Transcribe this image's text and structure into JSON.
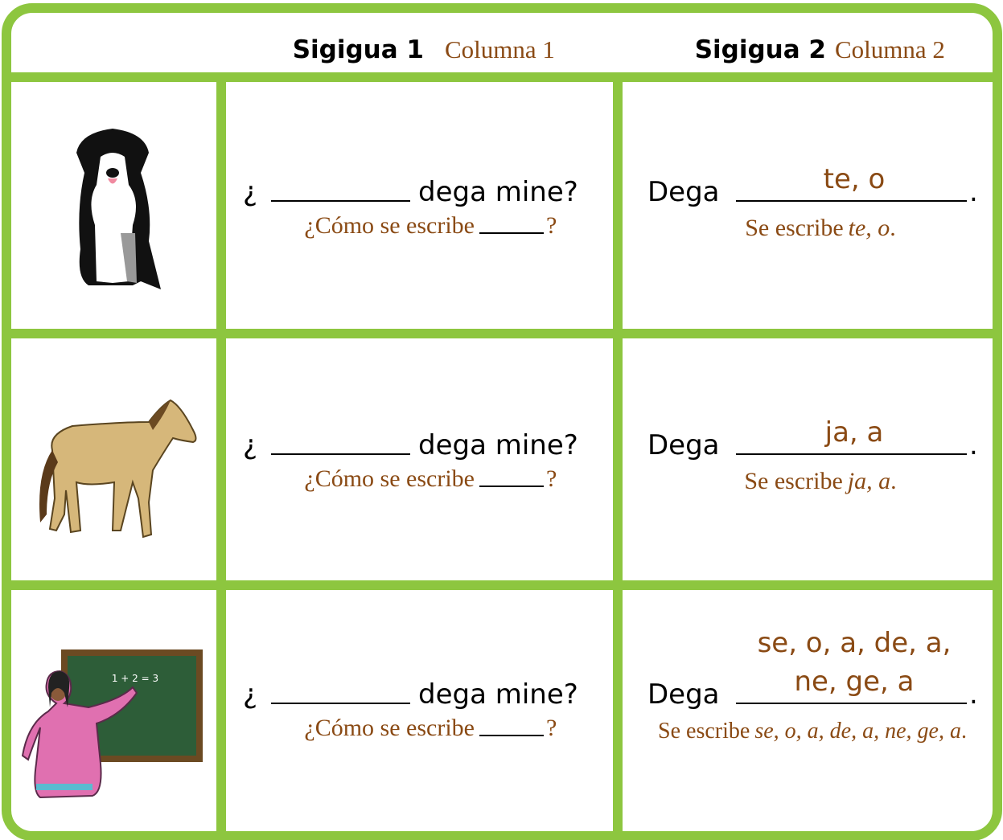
{
  "header": {
    "columns": [
      {
        "title": "Sigigua 1",
        "subtitle": "Columna 1"
      },
      {
        "title": "Sigigua 2",
        "subtitle": "Columna 2"
      }
    ]
  },
  "rows": [
    {
      "question": {
        "prefix": "¿",
        "suffix": "dega mine?"
      },
      "translation": {
        "prefix": "¿Cómo se escribe",
        "suffix": "?"
      },
      "answer": {
        "lead": "Dega",
        "fill": [
          "te, o"
        ],
        "end": "."
      },
      "answer_translation": {
        "lead": "Se escribe",
        "italic": "te, o",
        "end": "."
      }
    },
    {
      "question": {
        "prefix": "¿",
        "suffix": "dega mine?"
      },
      "translation": {
        "prefix": "¿Cómo se escribe",
        "suffix": "?"
      },
      "answer": {
        "lead": "Dega",
        "fill": [
          "ja, a"
        ],
        "end": "."
      },
      "answer_translation": {
        "lead": "Se escribe",
        "italic": "ja, a",
        "end": "."
      }
    },
    {
      "image_text": "1 + 2 = 3",
      "question": {
        "prefix": "¿",
        "suffix": "dega mine?"
      },
      "translation": {
        "prefix": "¿Cómo se escribe",
        "suffix": "?"
      },
      "answer": {
        "lead": "Dega",
        "fill": [
          "se, o, a, de, a,",
          "ne, ge, a"
        ],
        "end": "."
      },
      "answer_translation": {
        "lead": "Se escribe",
        "italic": "se, o, a, de, a, ne, ge, a",
        "end": "."
      }
    }
  ]
}
